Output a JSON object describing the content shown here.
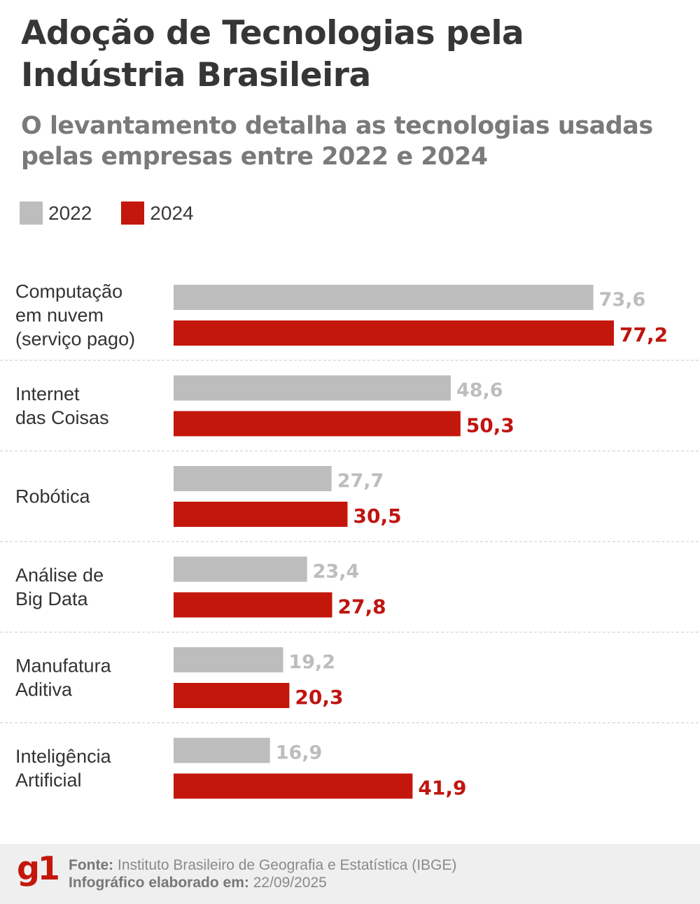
{
  "header": {
    "title": "Adoção de Tecnologias pela Indústria Brasileira",
    "subtitle": "O levantamento detalha as tecnologias usadas pelas empresas entre 2022 e 2024"
  },
  "legend": [
    {
      "label": "2022",
      "color": "#bdbdbd"
    },
    {
      "label": "2024",
      "color": "#c4170c"
    }
  ],
  "chart_data": {
    "type": "bar",
    "orientation": "horizontal",
    "title": "Adoção de Tecnologias pela Indústria Brasileira",
    "subtitle": "O levantamento detalha as tecnologias usadas pelas empresas entre 2022 e 2024",
    "categories": [
      [
        "Computação",
        "em nuvem",
        "(serviço pago)"
      ],
      [
        "Internet",
        "das Coisas"
      ],
      [
        "Robótica"
      ],
      [
        "Análise de",
        "Big Data"
      ],
      [
        "Manufatura",
        "Aditiva"
      ],
      [
        "Inteligência",
        "Artificial"
      ]
    ],
    "series": [
      {
        "name": "2022",
        "color": "#bdbdbd",
        "values": [
          73.6,
          48.6,
          27.7,
          23.4,
          19.2,
          16.9
        ],
        "labels": [
          "73,6",
          "48,6",
          "27,7",
          "23,4",
          "19,2",
          "16,9"
        ]
      },
      {
        "name": "2024",
        "color": "#c4170c",
        "values": [
          77.2,
          50.3,
          30.5,
          27.8,
          20.3,
          41.9
        ],
        "labels": [
          "77,2",
          "50,3",
          "30,5",
          "27,8",
          "20,3",
          "41,9"
        ]
      }
    ],
    "unit": "%",
    "xlim": [
      0,
      77.2
    ],
    "legend_position": "top-left",
    "grid": false
  },
  "footer": {
    "logo": "g1",
    "source_label": "Fonte:",
    "source_value": "Instituto Brasileiro de Geografia e Estatística (IBGE)",
    "date_label": "Infográfico elaborado em:",
    "date_value": "22/09/2025"
  }
}
